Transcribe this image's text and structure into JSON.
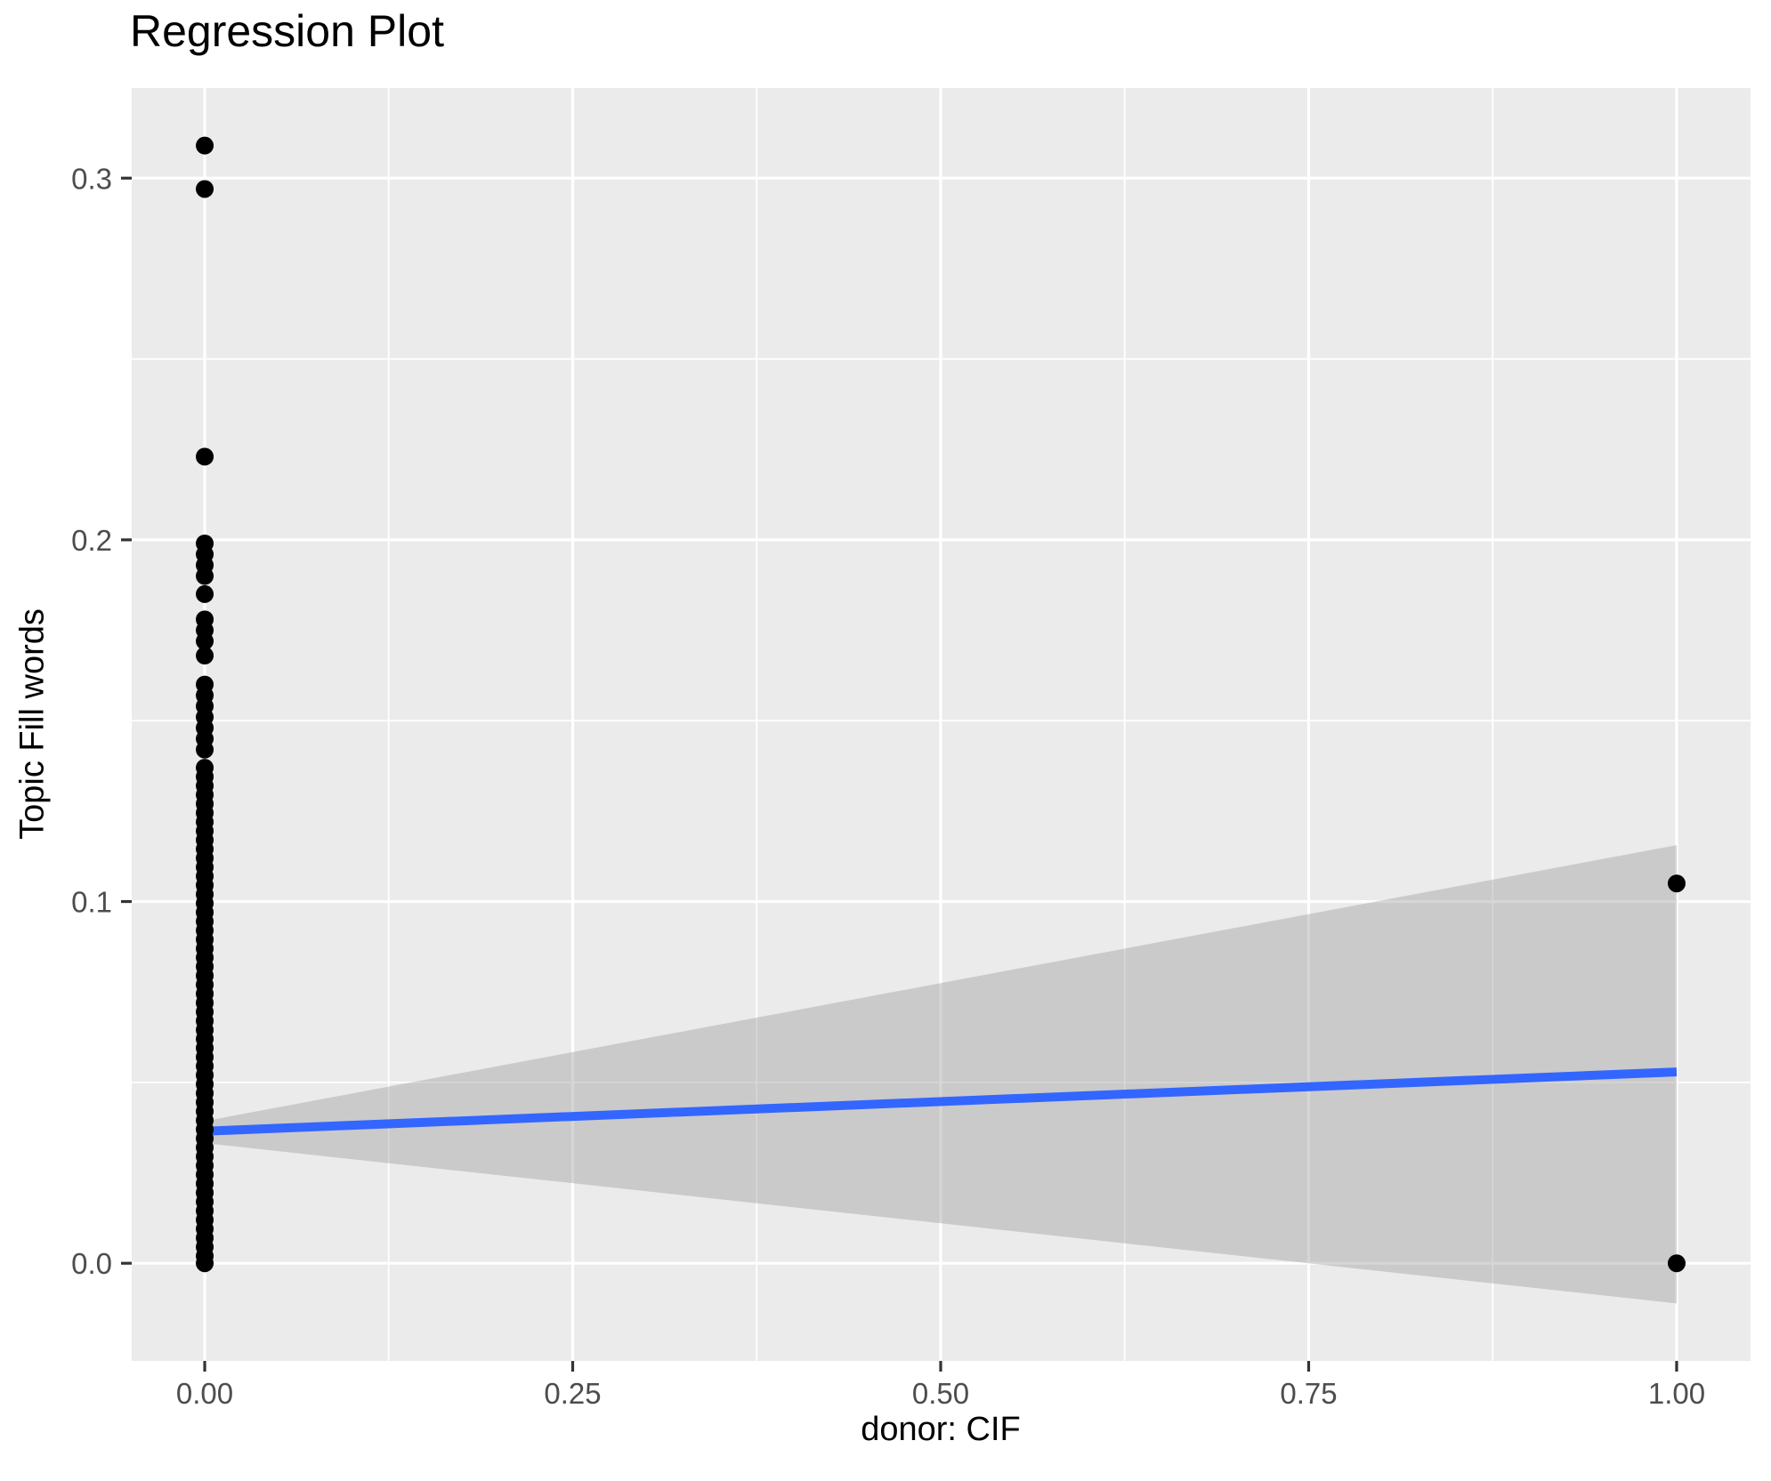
{
  "chart": {
    "title": "Regression Plot",
    "x_axis": {
      "title": "donor: CIF"
    },
    "y_axis": {
      "title": "Topic Fill words"
    }
  },
  "chart_data": {
    "type": "scatter",
    "title": "Regression Plot",
    "xlabel": "donor: CIF",
    "ylabel": "Topic Fill words",
    "xlim": [
      -0.0496,
      1.0502
    ],
    "ylim": [
      -0.027,
      0.3249
    ],
    "grid": true,
    "legend": false,
    "x": {
      "ticks": {
        "values": [
          0,
          0.25,
          0.5,
          0.75,
          1.0
        ],
        "labels": [
          "0.00",
          "0.25",
          "0.50",
          "0.75",
          "1.00"
        ]
      },
      "minor": [
        0.125,
        0.375,
        0.625,
        0.875
      ]
    },
    "y": {
      "ticks": {
        "values": [
          0,
          0.1,
          0.2,
          0.3
        ],
        "labels": [
          "0.0",
          "0.1",
          "0.2",
          "0.3"
        ]
      },
      "minor": [
        0.05,
        0.15,
        0.25
      ]
    },
    "series": {
      "points": {
        "name": "observations",
        "color": "#000000",
        "groups": [
          {
            "x": 0,
            "y": [
              0.309,
              0.297,
              0.223,
              0.199,
              0.196,
              0.193,
              0.19,
              0.185,
              0.178,
              0.175,
              0.172,
              0.168,
              0.16,
              0.157,
              0.154,
              0.151,
              0.148,
              0.145,
              0.142,
              0.137,
              0.1345,
              0.132,
              0.1295,
              0.127,
              0.1245,
              0.122,
              0.1195,
              0.117,
              0.1145,
              0.112,
              0.1095,
              0.107,
              0.1045,
              0.102,
              0.0995,
              0.097,
              0.0945,
              0.092,
              0.0895,
              0.087,
              0.0845,
              0.082,
              0.0795,
              0.077,
              0.0745,
              0.072,
              0.0695,
              0.067,
              0.0645,
              0.062,
              0.0595,
              0.057,
              0.0545,
              0.052,
              0.0495,
              0.047,
              0.0445,
              0.042,
              0.0395,
              0.037,
              0.0345,
              0.032,
              0.0295,
              0.027,
              0.0245,
              0.022,
              0.0195,
              0.017,
              0.0145,
              0.012,
              0.0095,
              0.007,
              0.0045,
              0.002,
              0.0
            ]
          },
          {
            "x": 1,
            "y": [
              0.105,
              0.0
            ]
          }
        ]
      },
      "regression_line": {
        "name": "linear-fit",
        "color": "#3366FF",
        "points": [
          [
            0,
            0.0365
          ],
          [
            1,
            0.0529
          ]
        ]
      },
      "band": {
        "name": "confidence-interval",
        "fill": "rgba(153,153,153,0.4)",
        "upper": [
          [
            0,
            0.0393
          ],
          [
            1,
            0.1156
          ]
        ],
        "lower": [
          [
            0,
            0.0332
          ],
          [
            1,
            -0.0111
          ]
        ]
      }
    },
    "style": {
      "panel_bg": "#EBEBEB",
      "grid_color": "#FFFFFF",
      "tick_color": "#333333",
      "tick_label_color": "#4D4D4D",
      "text_color": "#000000",
      "point_color": "#000000",
      "line_color": "#3366FF",
      "band_fill": "rgba(153,153,153,0.4)"
    }
  }
}
